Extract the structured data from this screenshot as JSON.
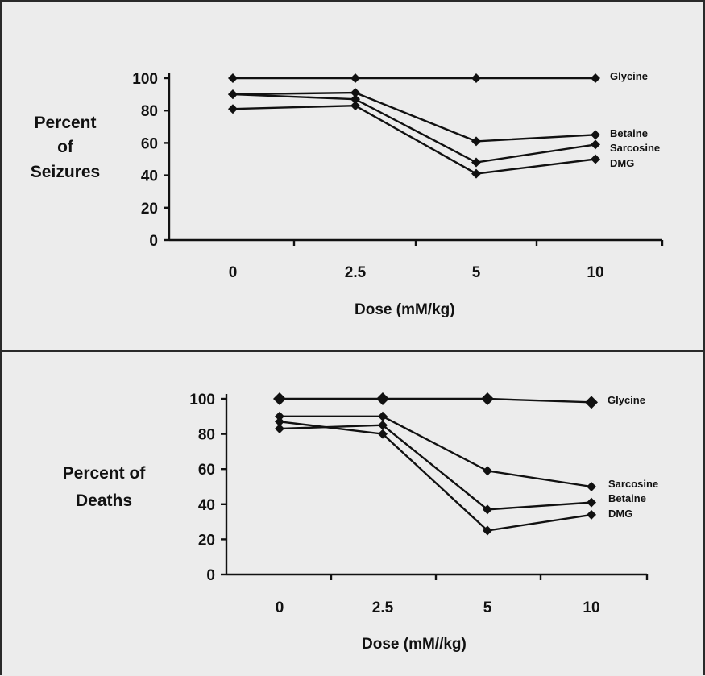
{
  "chart_data": [
    {
      "type": "line",
      "ylabel_lines": [
        "Percent",
        "of",
        "Seizures"
      ],
      "xlabel": "Dose (mM/kg)",
      "categories": [
        "0",
        "2.5",
        "5",
        "10"
      ],
      "yticks": [
        "0",
        "20",
        "40",
        "60",
        "80",
        "100"
      ],
      "ylim": [
        0,
        100
      ],
      "grid": false,
      "series": [
        {
          "name": "Glycine",
          "values": [
            100,
            100,
            100,
            100
          ]
        },
        {
          "name": "Betaine",
          "values": [
            90,
            91,
            61,
            65
          ]
        },
        {
          "name": "Sarcosine",
          "values": [
            90,
            87,
            48,
            59
          ]
        },
        {
          "name": "DMG",
          "values": [
            81,
            83,
            41,
            50
          ]
        }
      ]
    },
    {
      "type": "line",
      "ylabel_lines": [
        "Percent of",
        "Deaths"
      ],
      "xlabel": "Dose (mM//kg)",
      "categories": [
        "0",
        "2.5",
        "5",
        "10"
      ],
      "yticks": [
        "0",
        "20",
        "40",
        "60",
        "80",
        "100"
      ],
      "ylim": [
        0,
        100
      ],
      "grid": false,
      "series": [
        {
          "name": "Glycine",
          "values": [
            100,
            100,
            100,
            98
          ]
        },
        {
          "name": "Sarcosine",
          "values": [
            90,
            90,
            59,
            50
          ]
        },
        {
          "name": "Betaine",
          "values": [
            83,
            85,
            37,
            41
          ]
        },
        {
          "name": "DMG",
          "values": [
            87,
            80,
            25,
            34
          ]
        }
      ]
    }
  ]
}
